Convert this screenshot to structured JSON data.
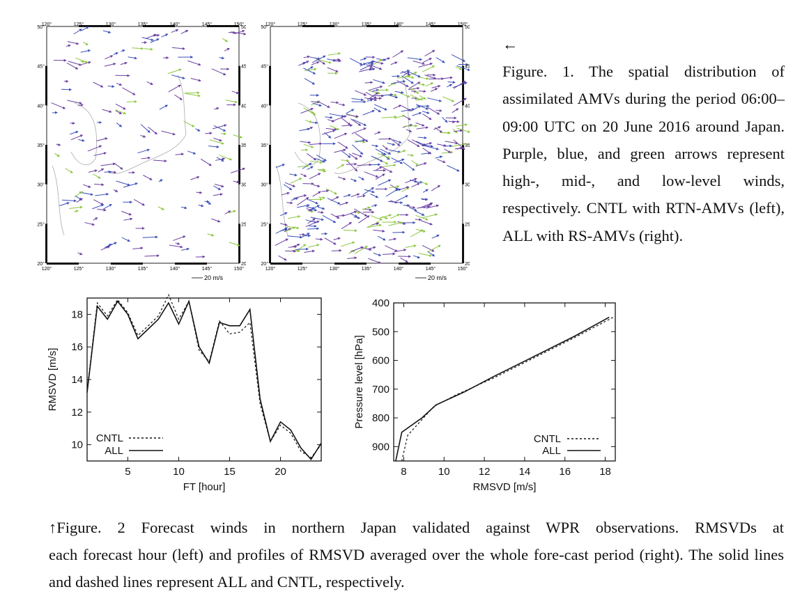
{
  "figure1": {
    "maps": [
      {
        "id": "left",
        "lon_ticks": [
          "120°",
          "125°",
          "130°",
          "135°",
          "140°",
          "145°",
          "150°"
        ],
        "lat_ticks": [
          "50°",
          "45°",
          "40°",
          "35°",
          "30°",
          "25°",
          "20°"
        ],
        "scale_label": "20 m/s"
      },
      {
        "id": "right",
        "lon_ticks": [
          "120°",
          "125°",
          "130°",
          "135°",
          "140°",
          "145°",
          "150°"
        ],
        "lat_ticks": [
          "50°",
          "45°",
          "40°",
          "35°",
          "30°",
          "25°",
          "20°"
        ],
        "scale_label": "20 m/s"
      }
    ],
    "arrow_colors": {
      "high": "#6a3fa0",
      "mid": "#3b4fb8",
      "low": "#8cc63f"
    },
    "caption_arrow": "←",
    "caption": "Figure. 1. The spatial distribution of assimilated AMVs during the period 06:00–09:00 UTC on 20 June 2016 around Japan. Purple, blue, and green arrows represent high-, mid-, and low-level winds, respectively. CNTL with RTN-AMVs (left), ALL with RS-AMVs (right)."
  },
  "figure2": {
    "caption_line1": "↑Figure. 2 Forecast winds in northern Japan validated against WPR observations. RMSVDs at",
    "caption_rest": "each forecast hour (left) and profiles of RMSVD averaged over the whole fore-cast period (right). The solid lines and dashed lines represent ALL and CNTL, respectively."
  },
  "chart_data": [
    {
      "type": "line",
      "xlabel": "FT [hour]",
      "ylabel": "RMSVD [m/s]",
      "xlim": [
        1,
        24
      ],
      "ylim": [
        9,
        19
      ],
      "x_ticks": [
        5,
        10,
        15,
        20
      ],
      "y_ticks": [
        10,
        12,
        14,
        16,
        18
      ],
      "legend_position": "bottom-left",
      "x": [
        1,
        2,
        3,
        4,
        5,
        6,
        7,
        8,
        9,
        10,
        11,
        12,
        13,
        14,
        15,
        16,
        17,
        18,
        19,
        20,
        21,
        22,
        23,
        24
      ],
      "series": [
        {
          "name": "CNTL",
          "style": "dashed",
          "values": [
            13.3,
            18.7,
            17.9,
            18.9,
            18.1,
            16.7,
            17.3,
            17.9,
            19.2,
            17.7,
            18.8,
            15.8,
            15.1,
            17.6,
            16.8,
            16.9,
            17.5,
            12.5,
            10.2,
            11.2,
            10.7,
            9.6,
            9.2,
            10.0
          ]
        },
        {
          "name": "ALL",
          "style": "solid",
          "values": [
            13.2,
            18.5,
            17.7,
            18.8,
            18.0,
            16.5,
            17.1,
            17.7,
            18.7,
            17.4,
            18.8,
            16.0,
            15.0,
            17.5,
            17.3,
            17.3,
            18.3,
            12.8,
            10.2,
            11.4,
            10.9,
            9.8,
            9.1,
            10.1
          ]
        }
      ]
    },
    {
      "type": "line",
      "xlabel": "RMSVD [m/s]",
      "ylabel": "Pressure level [hPa]",
      "xlim": [
        7.5,
        18.5
      ],
      "ylim": [
        950,
        400
      ],
      "x_ticks": [
        8,
        10,
        12,
        14,
        16,
        18
      ],
      "y_ticks": [
        400,
        500,
        600,
        700,
        800,
        900
      ],
      "legend_position": "bottom-right",
      "series": [
        {
          "name": "CNTL",
          "style": "dashed",
          "points": [
            [
              7.9,
              950
            ],
            [
              8.2,
              860
            ],
            [
              9.5,
              760
            ],
            [
              10.6,
              720
            ],
            [
              12.5,
              660
            ],
            [
              14.5,
              590
            ],
            [
              16.5,
              520
            ],
            [
              18.4,
              450
            ]
          ]
        },
        {
          "name": "ALL",
          "style": "solid",
          "points": [
            [
              7.6,
              950
            ],
            [
              7.9,
              850
            ],
            [
              8.9,
              800
            ],
            [
              9.6,
              755
            ],
            [
              11.0,
              710
            ],
            [
              12.5,
              655
            ],
            [
              14.5,
              585
            ],
            [
              16.5,
              515
            ],
            [
              18.2,
              450
            ]
          ]
        }
      ]
    }
  ]
}
